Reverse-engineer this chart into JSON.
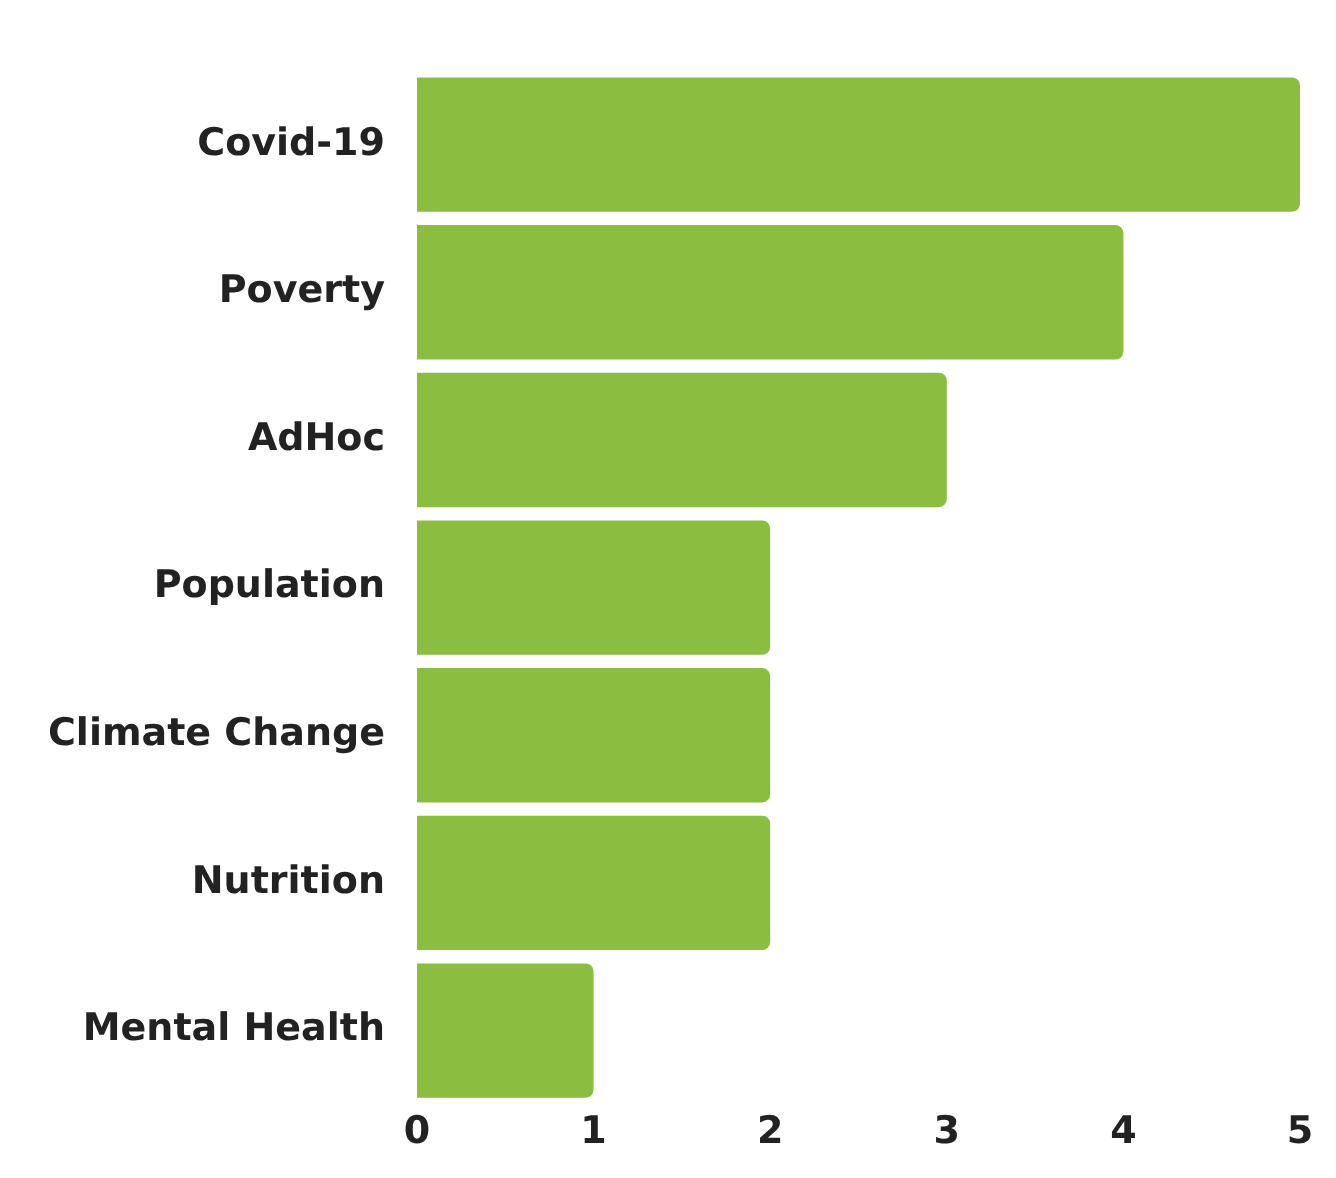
{
  "chart_data": {
    "type": "bar",
    "orientation": "horizontal",
    "categories": [
      "Covid-19",
      "Poverty",
      "AdHoc",
      "Population",
      "Climate Change",
      "Nutrition",
      "Mental Health"
    ],
    "values": [
      5,
      4,
      3,
      2,
      2,
      2,
      1
    ],
    "color": "#8bbd41",
    "xlim": [
      0,
      5
    ],
    "xticks": [
      0,
      1,
      2,
      3,
      4,
      5
    ],
    "grid": false,
    "legend": false
  }
}
